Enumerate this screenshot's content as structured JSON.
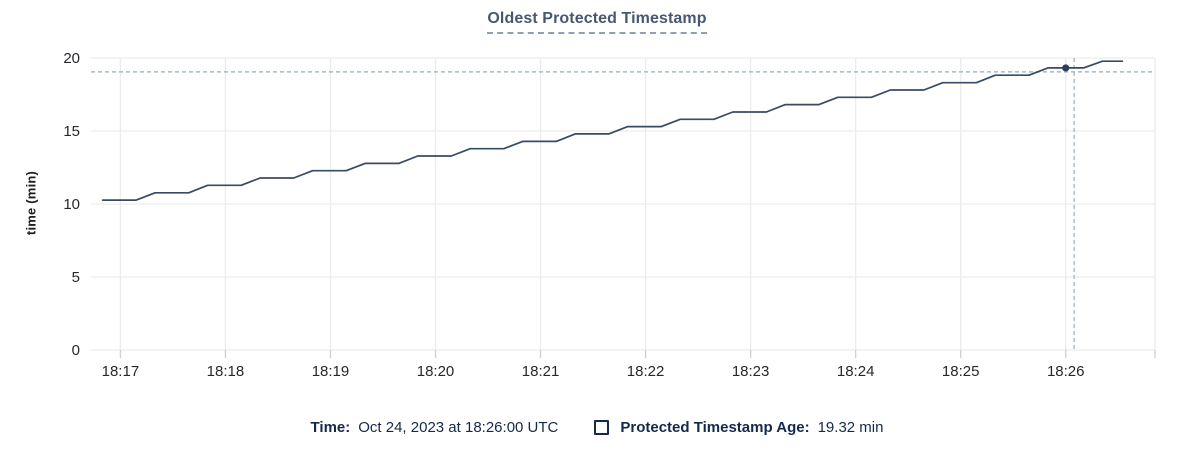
{
  "colors": {
    "line": "#394a64",
    "dot": "#2e3f5d",
    "grid": "#ececec",
    "tick": "#cfcfcf",
    "axis_text": "#26282c",
    "crosshair": "#a4bac6",
    "title": "#475872",
    "legend_text": "#15294b"
  },
  "chart_data": {
    "type": "line",
    "title": "Oldest Protected Timestamp",
    "ylabel": "time (min)",
    "xlabel": "",
    "ylim": [
      0,
      20
    ],
    "yticks": [
      0,
      5,
      10,
      15,
      20
    ],
    "x_unit": "minutes after 18:16 UTC",
    "xlim": [
      0.72,
      10.85
    ],
    "xticks": [
      {
        "value": 1,
        "label": "18:17"
      },
      {
        "value": 2,
        "label": "18:18"
      },
      {
        "value": 3,
        "label": "18:19"
      },
      {
        "value": 4,
        "label": "18:20"
      },
      {
        "value": 5,
        "label": "18:21"
      },
      {
        "value": 6,
        "label": "18:22"
      },
      {
        "value": 7,
        "label": "18:23"
      },
      {
        "value": 8,
        "label": "18:24"
      },
      {
        "value": 9,
        "label": "18:25"
      },
      {
        "value": 10,
        "label": "18:26"
      }
    ],
    "grid": true,
    "legend_position": "bottom",
    "series": [
      {
        "name": "Protected Timestamp Age",
        "points": [
          [
            0.83,
            10.27
          ],
          [
            1.15,
            10.27
          ],
          [
            1.33,
            10.77
          ],
          [
            1.65,
            10.77
          ],
          [
            1.83,
            11.28
          ],
          [
            2.15,
            11.28
          ],
          [
            2.33,
            11.78
          ],
          [
            2.65,
            11.78
          ],
          [
            2.83,
            12.28
          ],
          [
            3.15,
            12.28
          ],
          [
            3.33,
            12.78
          ],
          [
            3.65,
            12.78
          ],
          [
            3.83,
            13.29
          ],
          [
            4.15,
            13.29
          ],
          [
            4.33,
            13.79
          ],
          [
            4.65,
            13.79
          ],
          [
            4.83,
            14.29
          ],
          [
            5.15,
            14.29
          ],
          [
            5.33,
            14.8
          ],
          [
            5.65,
            14.8
          ],
          [
            5.83,
            15.3
          ],
          [
            6.15,
            15.3
          ],
          [
            6.33,
            15.8
          ],
          [
            6.65,
            15.8
          ],
          [
            6.83,
            16.3
          ],
          [
            7.15,
            16.3
          ],
          [
            7.33,
            16.81
          ],
          [
            7.65,
            16.81
          ],
          [
            7.83,
            17.31
          ],
          [
            8.15,
            17.31
          ],
          [
            8.33,
            17.81
          ],
          [
            8.65,
            17.81
          ],
          [
            8.83,
            18.31
          ],
          [
            9.15,
            18.31
          ],
          [
            9.33,
            18.82
          ],
          [
            9.65,
            18.82
          ],
          [
            9.83,
            19.32
          ],
          [
            10.17,
            19.32
          ],
          [
            10.35,
            19.78
          ],
          [
            10.54,
            19.78
          ]
        ]
      }
    ],
    "highlight": {
      "t": 10.0,
      "v": 19.32
    },
    "crosshair": {
      "t": 10.08,
      "v": 19.05
    }
  },
  "tooltip": {
    "time_label": "Time:",
    "time_value": "Oct 24, 2023 at 18:26:00 UTC",
    "series_label": "Protected Timestamp Age:",
    "series_value": "19.32 min"
  }
}
